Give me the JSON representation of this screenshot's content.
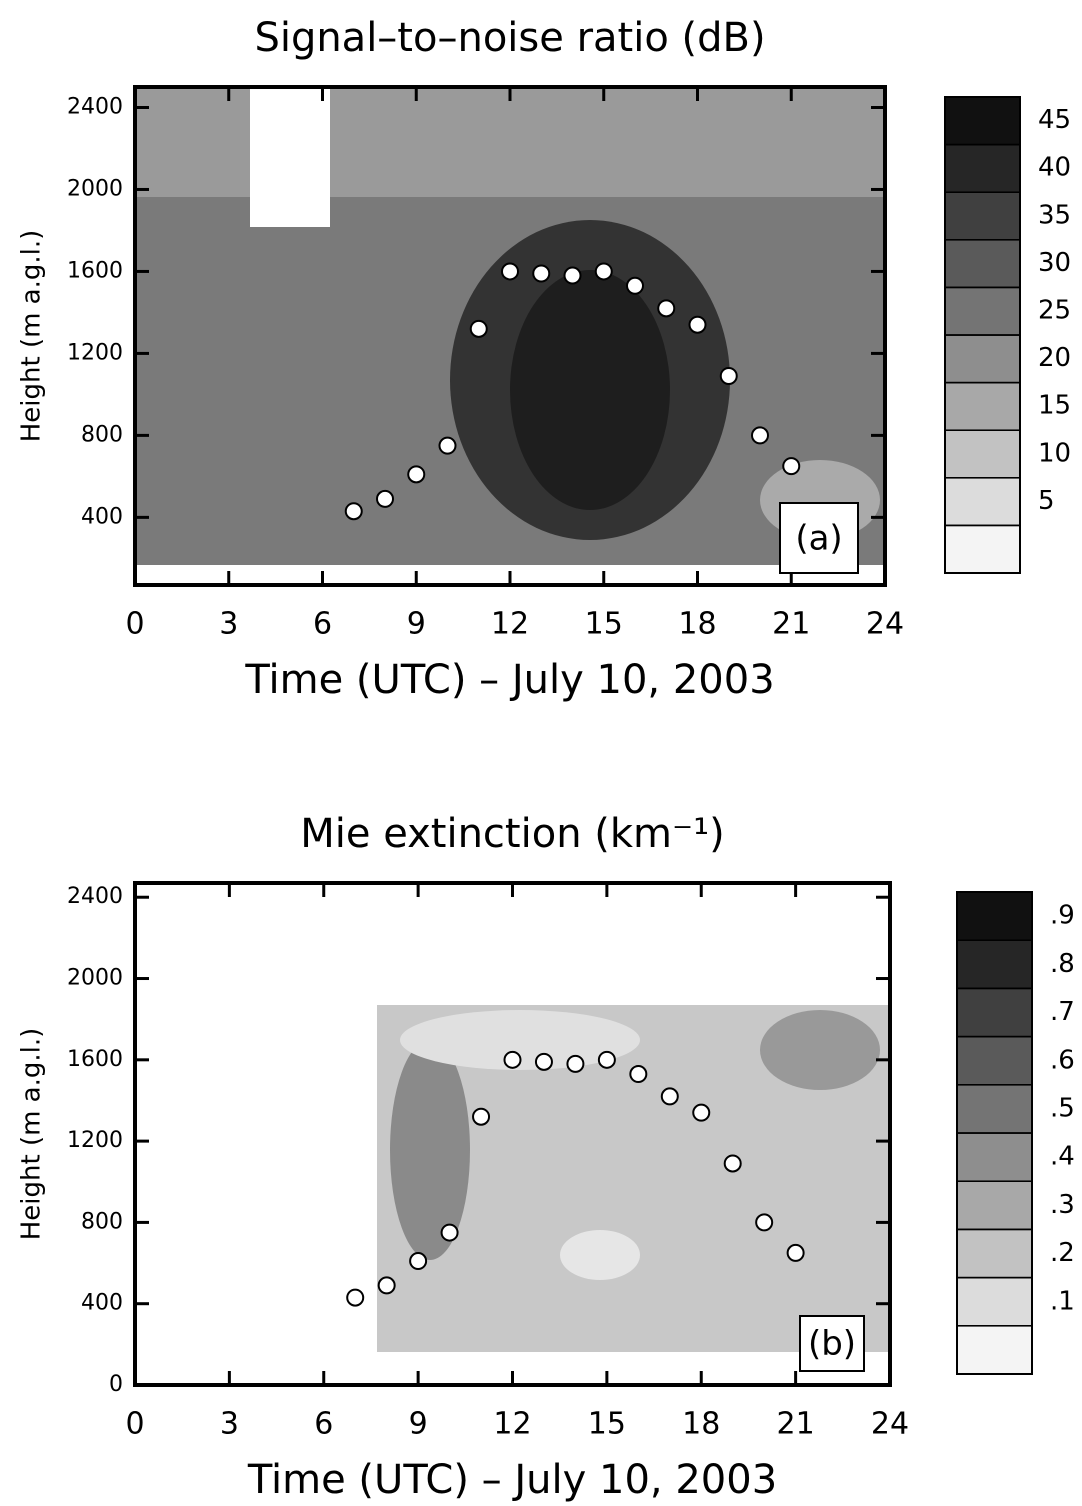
{
  "chart_data": [
    {
      "type": "scatter",
      "title": "Signal–to–noise ratio (dB)",
      "panel_label": "(a)",
      "x_label": "Time (UTC) – July 10, 2003",
      "y_label": "Height (m a.g.l.)",
      "xlim": [
        0,
        24
      ],
      "xticks": [
        0,
        3,
        6,
        9,
        12,
        15,
        18,
        21,
        24
      ],
      "ylim": [
        70,
        2500
      ],
      "yticks": [
        400,
        800,
        1200,
        1600,
        2000,
        2400
      ],
      "x": [
        7,
        8,
        9,
        10,
        11,
        12,
        13,
        14,
        15,
        16,
        17,
        18,
        19,
        20,
        21
      ],
      "values": [
        430,
        490,
        610,
        750,
        1320,
        1600,
        1590,
        1580,
        1600,
        1530,
        1420,
        1340,
        1090,
        800,
        650
      ],
      "color": "#ffffff",
      "colorbar": {
        "lim": [
          0,
          50
        ],
        "ticks": [
          5,
          10,
          15,
          20,
          25,
          30,
          35,
          40,
          45
        ],
        "colors": [
          "#f4f4f4",
          "#dcdcdc",
          "#c2c2c2",
          "#a8a8a8",
          "#8e8e8e",
          "#747474",
          "#5a5a5a",
          "#404040",
          "#262626",
          "#111111"
        ]
      }
    },
    {
      "type": "scatter",
      "title": "Mie extinction (km⁻¹)",
      "panel_label": "(b)",
      "x_label": "Time (UTC) – July 10, 2003",
      "y_label": "Height (m a.g.l.)",
      "xlim": [
        0,
        24
      ],
      "xticks": [
        0,
        3,
        6,
        9,
        12,
        15,
        18,
        21,
        24
      ],
      "ylim": [
        0,
        2470
      ],
      "yticks": [
        0,
        400,
        800,
        1200,
        1600,
        2000,
        2400
      ],
      "x": [
        7,
        8,
        9,
        10,
        11,
        12,
        13,
        14,
        15,
        16,
        17,
        18,
        19,
        20,
        21
      ],
      "values": [
        430,
        490,
        610,
        750,
        1320,
        1600,
        1590,
        1580,
        1600,
        1530,
        1420,
        1340,
        1090,
        800,
        650
      ],
      "color": "#ffffff",
      "colorbar": {
        "lim": [
          0,
          1
        ],
        "ticks": [
          {
            "value": 0.1,
            "label": ".1"
          },
          {
            "value": 0.2,
            "label": ".2"
          },
          {
            "value": 0.3,
            "label": ".3"
          },
          {
            "value": 0.4,
            "label": ".4"
          },
          {
            "value": 0.5,
            "label": ".5"
          },
          {
            "value": 0.6,
            "label": ".6"
          },
          {
            "value": 0.7,
            "label": ".7"
          },
          {
            "value": 0.8,
            "label": ".8"
          },
          {
            "value": 0.9,
            "label": ".9"
          }
        ],
        "colors": [
          "#f4f4f4",
          "#dcdcdc",
          "#c2c2c2",
          "#a8a8a8",
          "#8e8e8e",
          "#747474",
          "#5a5a5a",
          "#404040",
          "#262626",
          "#111111"
        ]
      }
    }
  ]
}
